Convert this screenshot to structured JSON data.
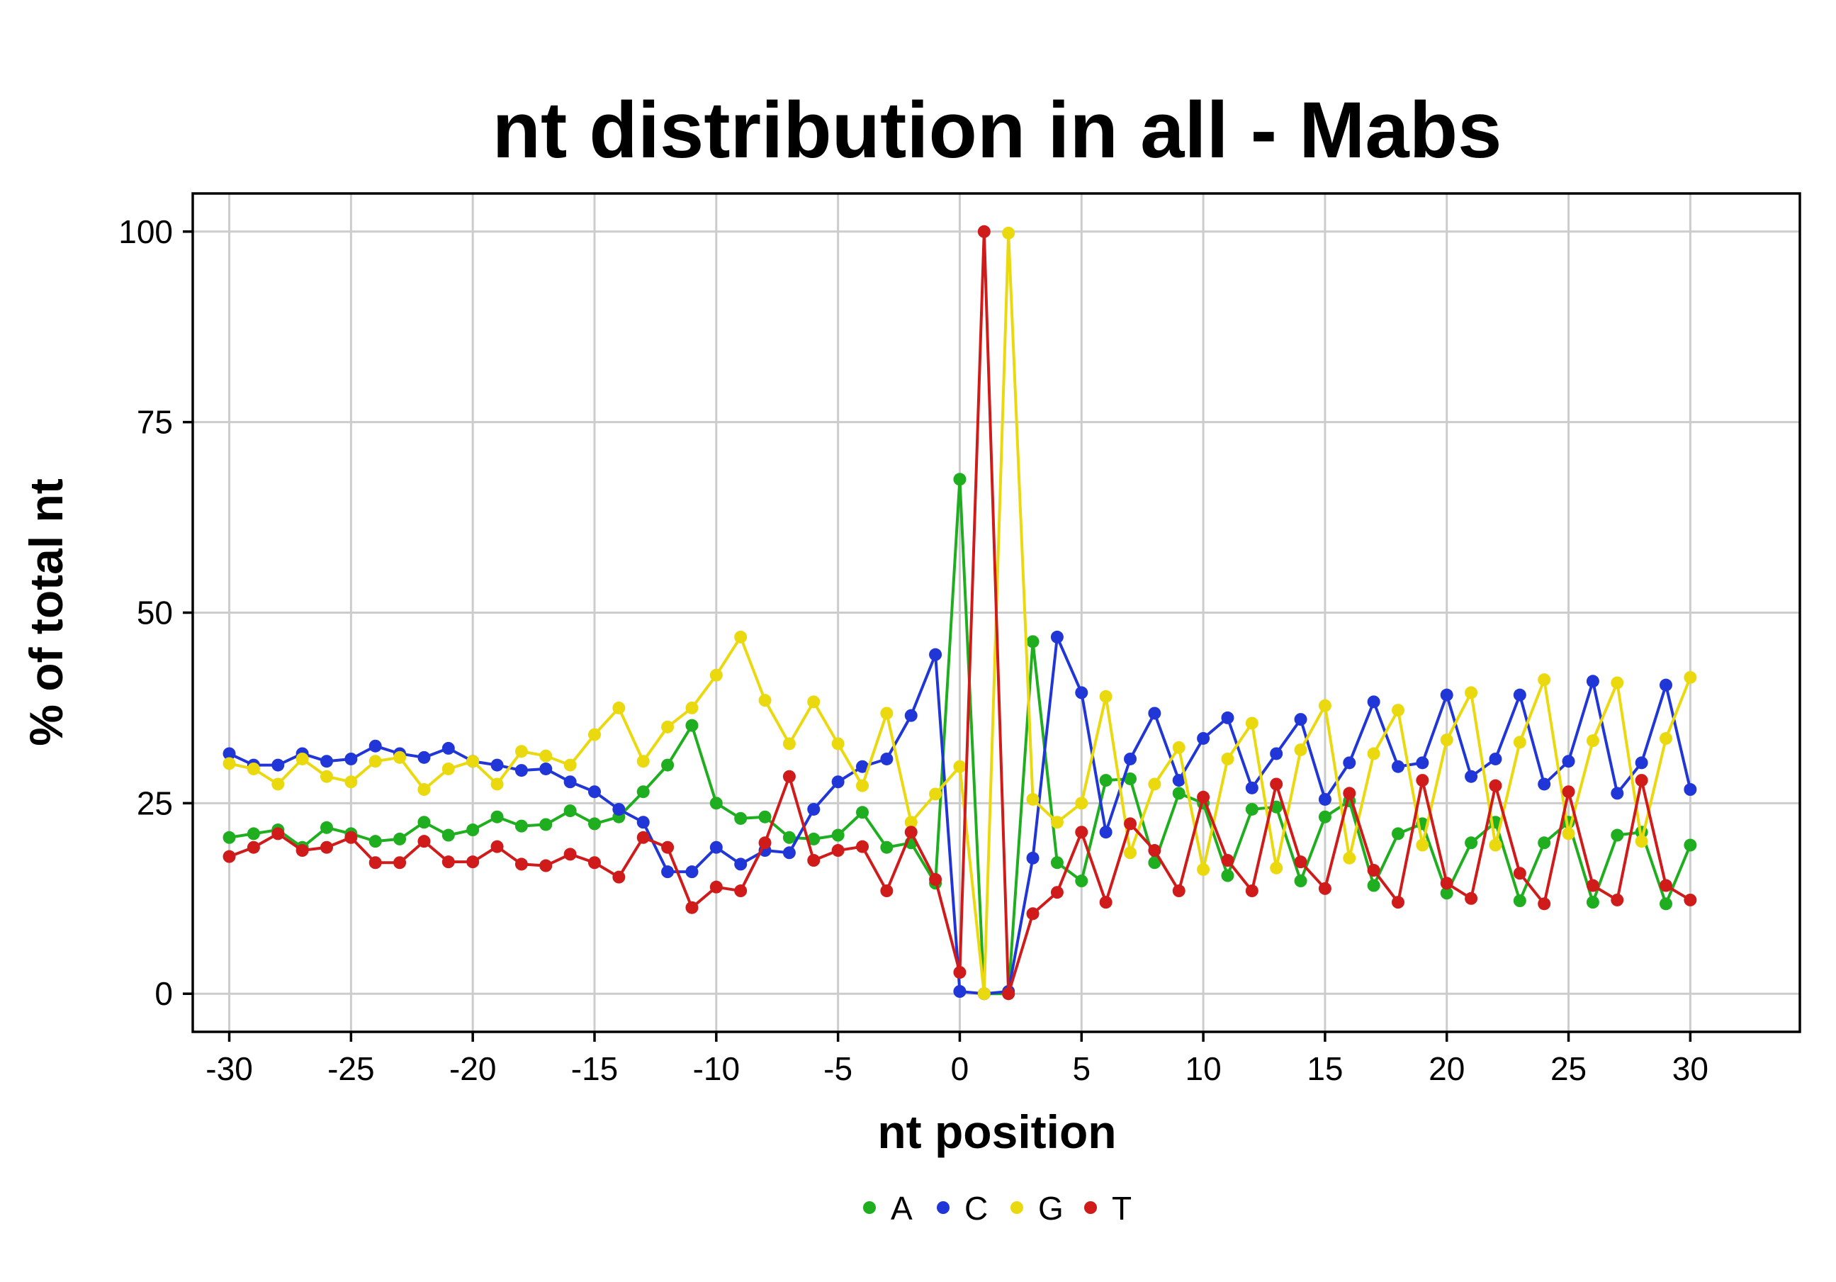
{
  "chart_data": {
    "type": "line",
    "title": "nt distribution in all - Mabs",
    "xlabel": "nt position",
    "ylabel": "% of total nt",
    "xlim": [
      -31.5,
      34.5
    ],
    "ylim": [
      -5,
      105
    ],
    "xticks": [
      -30,
      -25,
      -20,
      -15,
      -10,
      -5,
      0,
      5,
      10,
      15,
      20,
      25,
      30
    ],
    "xtick_labels": [
      "-30",
      "-25",
      "-20",
      "-15",
      "-10",
      "-5",
      "0",
      "5",
      "10",
      "15",
      "20",
      "25",
      "30"
    ],
    "yticks": [
      0,
      25,
      50,
      75,
      100
    ],
    "ytick_labels": [
      "0",
      "25",
      "50",
      "75",
      "100"
    ],
    "grid": true,
    "legend_position": "bottom",
    "x": [
      -30,
      -29,
      -28,
      -27,
      -26,
      -25,
      -24,
      -23,
      -22,
      -21,
      -20,
      -19,
      -18,
      -17,
      -16,
      -15,
      -14,
      -13,
      -12,
      -11,
      -10,
      -9,
      -8,
      -7,
      -6,
      -5,
      -4,
      -3,
      -2,
      -1,
      0,
      1,
      2,
      3,
      4,
      5,
      6,
      7,
      8,
      9,
      10,
      11,
      12,
      13,
      14,
      15,
      16,
      17,
      18,
      19,
      20,
      21,
      22,
      23,
      24,
      25,
      26,
      27,
      28,
      29,
      30
    ],
    "series": [
      {
        "name": "A",
        "color": "#1fae1f",
        "values": [
          20.5,
          21.0,
          21.5,
          19.2,
          21.8,
          21.0,
          20.0,
          20.3,
          22.5,
          20.8,
          21.5,
          23.2,
          22.0,
          22.2,
          24.0,
          22.3,
          23.2,
          26.5,
          30.0,
          35.2,
          25.0,
          23.0,
          23.2,
          20.5,
          20.3,
          20.8,
          23.8,
          19.2,
          19.8,
          14.5,
          67.5,
          0.0,
          0.0,
          46.2,
          17.2,
          14.8,
          28.0,
          28.2,
          17.2,
          26.3,
          25.0,
          15.5,
          24.2,
          24.5,
          14.8,
          23.2,
          25.3,
          14.2,
          21.0,
          22.3,
          13.2,
          19.8,
          22.5,
          12.2,
          19.8,
          22.5,
          12.0,
          20.8,
          21.2,
          11.8,
          19.5
        ]
      },
      {
        "name": "C",
        "color": "#2136d6",
        "values": [
          31.5,
          30.0,
          30.0,
          31.5,
          30.5,
          30.8,
          32.5,
          31.5,
          31.0,
          32.2,
          30.5,
          30.0,
          29.3,
          29.5,
          27.8,
          26.5,
          24.2,
          22.5,
          16.0,
          16.0,
          19.2,
          17.0,
          18.8,
          18.5,
          24.2,
          27.8,
          29.8,
          30.8,
          36.5,
          44.5,
          0.3,
          0.0,
          0.3,
          17.8,
          46.8,
          39.5,
          21.2,
          30.8,
          36.8,
          28.0,
          33.5,
          36.2,
          27.0,
          31.5,
          36.0,
          25.5,
          30.3,
          38.3,
          29.8,
          30.3,
          39.2,
          28.5,
          30.8,
          39.2,
          27.5,
          30.5,
          41.0,
          26.3,
          30.3,
          40.5,
          26.8
        ]
      },
      {
        "name": "G",
        "color": "#ebd90f",
        "values": [
          30.2,
          29.5,
          27.5,
          30.8,
          28.5,
          27.8,
          30.5,
          31.0,
          26.8,
          29.5,
          30.5,
          27.5,
          31.8,
          31.2,
          30.0,
          34.0,
          37.5,
          30.5,
          35.0,
          37.5,
          41.8,
          46.8,
          38.5,
          32.8,
          38.3,
          32.8,
          27.3,
          36.8,
          22.5,
          26.2,
          29.8,
          0.0,
          99.8,
          25.5,
          22.5,
          25.0,
          39.0,
          18.5,
          27.5,
          32.3,
          16.3,
          30.8,
          35.5,
          16.5,
          32.0,
          37.8,
          17.8,
          31.5,
          37.2,
          19.5,
          33.3,
          39.5,
          19.5,
          33.0,
          41.2,
          21.0,
          33.2,
          40.8,
          20.0,
          33.5,
          41.5
        ]
      },
      {
        "name": "T",
        "color": "#d01b1b",
        "values": [
          18.0,
          19.2,
          21.0,
          18.8,
          19.2,
          20.5,
          17.2,
          17.2,
          20.0,
          17.3,
          17.3,
          19.3,
          17.0,
          16.8,
          18.3,
          17.2,
          15.3,
          20.5,
          19.2,
          11.3,
          14.0,
          13.5,
          19.8,
          28.5,
          17.5,
          18.8,
          19.3,
          13.5,
          21.2,
          15.0,
          2.8,
          100.0,
          0.0,
          10.5,
          13.3,
          21.2,
          12.0,
          22.3,
          18.8,
          13.5,
          25.8,
          17.5,
          13.5,
          27.5,
          17.3,
          13.8,
          26.3,
          16.2,
          12.0,
          28.0,
          14.5,
          12.5,
          27.3,
          15.8,
          11.8,
          26.5,
          14.2,
          12.3,
          28.0,
          14.2,
          12.3
        ]
      }
    ]
  }
}
